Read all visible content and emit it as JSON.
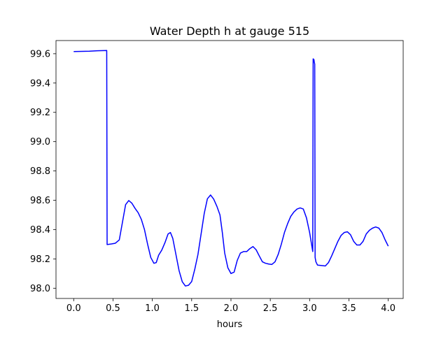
{
  "chart_data": {
    "type": "line",
    "title": "Water Depth h at gauge 515",
    "xlabel": "hours",
    "ylabel": "",
    "xlim": [
      -0.225,
      4.19
    ],
    "ylim": [
      97.93,
      99.69
    ],
    "grid": false,
    "x_ticks": [
      0.0,
      0.5,
      1.0,
      1.5,
      2.0,
      2.5,
      3.0,
      3.5,
      4.0
    ],
    "x_tick_labels": [
      "0.0",
      "0.5",
      "1.0",
      "1.5",
      "2.0",
      "2.5",
      "3.0",
      "3.5",
      "4.0"
    ],
    "y_ticks": [
      98.0,
      98.2,
      98.4,
      98.6,
      98.8,
      99.0,
      99.2,
      99.4,
      99.6
    ],
    "y_tick_labels": [
      "98.0",
      "98.2",
      "98.4",
      "98.6",
      "98.8",
      "99.0",
      "99.2",
      "99.4",
      "99.6"
    ],
    "series": [
      {
        "color": "#0000ff",
        "points": [
          [
            0.0,
            99.615
          ],
          [
            0.2,
            99.617
          ],
          [
            0.3,
            99.62
          ],
          [
            0.42,
            99.622
          ],
          [
            0.425,
            98.298
          ],
          [
            0.48,
            98.302
          ],
          [
            0.53,
            98.307
          ],
          [
            0.58,
            98.33
          ],
          [
            0.62,
            98.45
          ],
          [
            0.66,
            98.57
          ],
          [
            0.7,
            98.598
          ],
          [
            0.74,
            98.58
          ],
          [
            0.78,
            98.545
          ],
          [
            0.82,
            98.515
          ],
          [
            0.86,
            98.47
          ],
          [
            0.9,
            98.4
          ],
          [
            0.94,
            98.3
          ],
          [
            0.98,
            98.21
          ],
          [
            1.02,
            98.17
          ],
          [
            1.05,
            98.175
          ],
          [
            1.08,
            98.225
          ],
          [
            1.12,
            98.26
          ],
          [
            1.16,
            98.31
          ],
          [
            1.2,
            98.37
          ],
          [
            1.23,
            98.38
          ],
          [
            1.26,
            98.34
          ],
          [
            1.3,
            98.23
          ],
          [
            1.34,
            98.12
          ],
          [
            1.38,
            98.045
          ],
          [
            1.42,
            98.015
          ],
          [
            1.46,
            98.02
          ],
          [
            1.5,
            98.045
          ],
          [
            1.54,
            98.13
          ],
          [
            1.58,
            98.23
          ],
          [
            1.62,
            98.37
          ],
          [
            1.66,
            98.51
          ],
          [
            1.7,
            98.61
          ],
          [
            1.74,
            98.636
          ],
          [
            1.78,
            98.608
          ],
          [
            1.82,
            98.56
          ],
          [
            1.86,
            98.5
          ],
          [
            1.89,
            98.38
          ],
          [
            1.92,
            98.24
          ],
          [
            1.96,
            98.14
          ],
          [
            2.0,
            98.1
          ],
          [
            2.04,
            98.11
          ],
          [
            2.08,
            98.19
          ],
          [
            2.12,
            98.24
          ],
          [
            2.16,
            98.25
          ],
          [
            2.2,
            98.25
          ],
          [
            2.24,
            98.27
          ],
          [
            2.28,
            98.284
          ],
          [
            2.32,
            98.262
          ],
          [
            2.36,
            98.22
          ],
          [
            2.4,
            98.18
          ],
          [
            2.44,
            98.17
          ],
          [
            2.48,
            98.165
          ],
          [
            2.52,
            98.162
          ],
          [
            2.56,
            98.18
          ],
          [
            2.6,
            98.23
          ],
          [
            2.64,
            98.3
          ],
          [
            2.68,
            98.38
          ],
          [
            2.72,
            98.44
          ],
          [
            2.76,
            98.49
          ],
          [
            2.8,
            98.52
          ],
          [
            2.84,
            98.54
          ],
          [
            2.88,
            98.548
          ],
          [
            2.92,
            98.54
          ],
          [
            2.96,
            98.48
          ],
          [
            3.0,
            98.38
          ],
          [
            3.04,
            98.25
          ],
          [
            3.045,
            99.565
          ],
          [
            3.055,
            99.56
          ],
          [
            3.06,
            99.54
          ],
          [
            3.065,
            99.53
          ],
          [
            3.07,
            98.21
          ],
          [
            3.08,
            98.18
          ],
          [
            3.1,
            98.158
          ],
          [
            3.15,
            98.155
          ],
          [
            3.2,
            98.152
          ],
          [
            3.24,
            98.175
          ],
          [
            3.28,
            98.22
          ],
          [
            3.32,
            98.27
          ],
          [
            3.36,
            98.32
          ],
          [
            3.4,
            98.36
          ],
          [
            3.44,
            98.38
          ],
          [
            3.48,
            98.385
          ],
          [
            3.52,
            98.365
          ],
          [
            3.56,
            98.32
          ],
          [
            3.6,
            98.295
          ],
          [
            3.64,
            98.295
          ],
          [
            3.68,
            98.32
          ],
          [
            3.72,
            98.37
          ],
          [
            3.76,
            98.395
          ],
          [
            3.8,
            98.41
          ],
          [
            3.84,
            98.418
          ],
          [
            3.88,
            98.41
          ],
          [
            3.92,
            98.38
          ],
          [
            3.96,
            98.33
          ],
          [
            4.0,
            98.287
          ]
        ]
      }
    ]
  }
}
